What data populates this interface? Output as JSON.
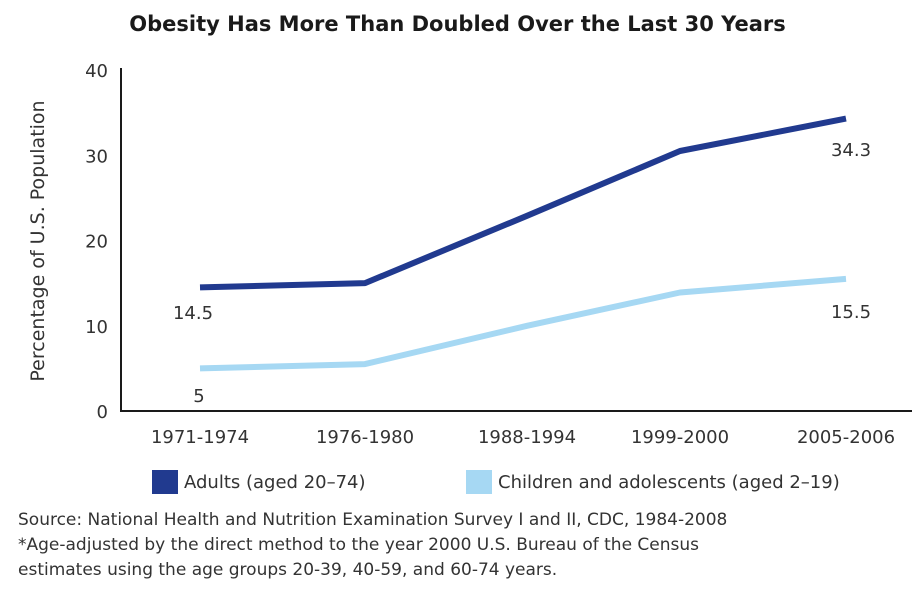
{
  "chart_data": {
    "type": "line",
    "title": "Obesity Has More Than Doubled Over the Last 30 Years",
    "xlabel": "",
    "ylabel": "Percentage of U.S. Population",
    "categories": [
      "1971-1974",
      "1976-1980",
      "1988-1994",
      "1999-2000",
      "2005-2006"
    ],
    "ylim": [
      0,
      40
    ],
    "yticks": [
      "0",
      "10",
      "20",
      "30",
      "40"
    ],
    "grid": false,
    "legend_position": "bottom",
    "series": [
      {
        "name": "Adults (aged 20–74)",
        "color": "#213a8f",
        "values": [
          14.5,
          15.0,
          22.9,
          30.5,
          34.3
        ]
      },
      {
        "name": "Children and adolescents (aged 2–19)",
        "color": "#a6d8f3",
        "values": [
          5.0,
          5.5,
          10.0,
          13.9,
          15.5
        ]
      }
    ],
    "annotations": [
      "14.5",
      "34.3",
      "5",
      "15.5"
    ]
  },
  "footnote": {
    "line1": "Source: National Health and Nutrition Examination Survey I and II, CDC, 1984-2008",
    "line2": "*Age-adjusted by the direct method to the year 2000 U.S. Bureau of the Census",
    "line3": "estimates using the age groups 20-39, 40-59, and 60-74 years."
  }
}
